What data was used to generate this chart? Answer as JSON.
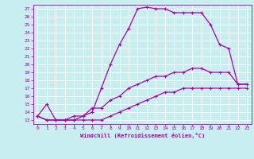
{
  "xlabel": "Windchill (Refroidissement éolien,°C)",
  "background_color": "#c8eef0",
  "grid_color": "#ffffff",
  "line_color": "#aa00aa",
  "xlim": [
    -0.5,
    23.5
  ],
  "ylim": [
    12.5,
    27.5
  ],
  "xticks": [
    0,
    1,
    2,
    3,
    4,
    5,
    6,
    7,
    8,
    9,
    10,
    11,
    12,
    13,
    14,
    15,
    16,
    17,
    18,
    19,
    20,
    21,
    22,
    23
  ],
  "yticks": [
    13,
    14,
    15,
    16,
    17,
    18,
    19,
    20,
    21,
    22,
    23,
    24,
    25,
    26,
    27
  ],
  "curve1_x": [
    0,
    1,
    2,
    3,
    4,
    5,
    6,
    7,
    8,
    9,
    10,
    11,
    12,
    13,
    14,
    15,
    16,
    17,
    18,
    19,
    20,
    21,
    22,
    23
  ],
  "curve1_y": [
    13.5,
    15.0,
    13.0,
    13.0,
    13.0,
    13.5,
    14.0,
    17.0,
    20.0,
    22.5,
    24.5,
    27.0,
    27.2,
    27.0,
    27.0,
    26.5,
    26.5,
    26.5,
    26.5,
    25.0,
    22.5,
    22.0,
    17.5,
    17.5
  ],
  "curve2_x": [
    0,
    1,
    2,
    3,
    4,
    5,
    6,
    7,
    8,
    9,
    10,
    11,
    12,
    13,
    14,
    15,
    16,
    17,
    18,
    19,
    20,
    21,
    22,
    23
  ],
  "curve2_y": [
    13.5,
    13.0,
    13.0,
    13.0,
    13.5,
    13.5,
    14.5,
    14.5,
    15.5,
    16.0,
    17.0,
    17.5,
    18.0,
    18.5,
    18.5,
    19.0,
    19.0,
    19.5,
    19.5,
    19.0,
    19.0,
    19.0,
    17.5,
    17.5
  ],
  "curve3_x": [
    0,
    1,
    2,
    3,
    4,
    5,
    6,
    7,
    8,
    9,
    10,
    11,
    12,
    13,
    14,
    15,
    16,
    17,
    18,
    19,
    20,
    21,
    22,
    23
  ],
  "curve3_y": [
    13.5,
    13.0,
    13.0,
    13.0,
    13.0,
    13.0,
    13.0,
    13.0,
    13.5,
    14.0,
    14.5,
    15.0,
    15.5,
    16.0,
    16.5,
    16.5,
    17.0,
    17.0,
    17.0,
    17.0,
    17.0,
    17.0,
    17.0,
    17.0
  ],
  "marker": "+",
  "marker_size": 3,
  "linewidth": 0.9
}
